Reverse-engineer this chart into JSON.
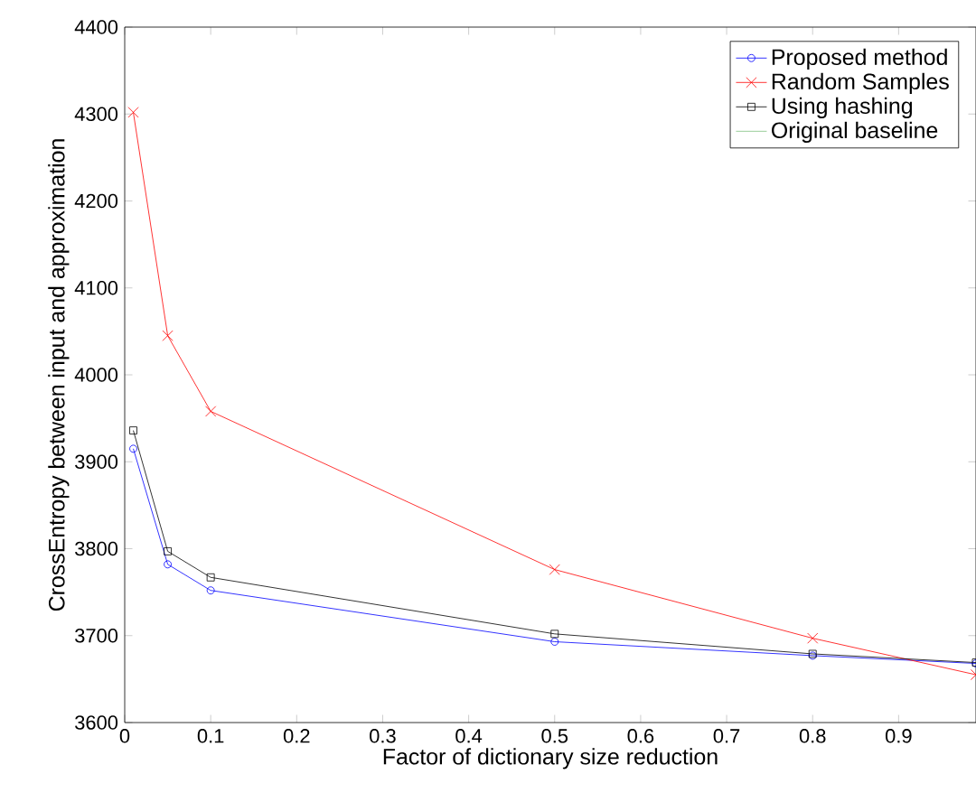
{
  "chart_data": {
    "type": "line",
    "xlabel": "Factor of dictionary size reduction",
    "ylabel": "CrossEntropy between input and approximation",
    "x": [
      0.01,
      0.05,
      0.1,
      0.5,
      0.8,
      0.99
    ],
    "xlim": [
      0,
      0.99
    ],
    "xticks": [
      0,
      0.1,
      0.2,
      0.3,
      0.4,
      0.5,
      0.6,
      0.7,
      0.8,
      0.9
    ],
    "ylim": [
      3600,
      4400
    ],
    "yticks": [
      3600,
      3700,
      3800,
      3900,
      4000,
      4100,
      4200,
      4300,
      4400
    ],
    "legend": "top right",
    "grid": false,
    "series": [
      {
        "name": "Proposed method",
        "color": "#0000ff",
        "marker": "circle",
        "values": [
          3915,
          3782,
          3752,
          3693,
          3677,
          3668
        ]
      },
      {
        "name": "Random Samples",
        "color": "#ff0000",
        "marker": "cross",
        "values": [
          4302,
          4045,
          3958,
          3776,
          3697,
          3655
        ]
      },
      {
        "name": "Using hashing",
        "color": "#000000",
        "marker": "square",
        "values": [
          3936,
          3797,
          3767,
          3702,
          3679,
          3669
        ]
      },
      {
        "name": "Original baseline",
        "color": "#7fbf7f",
        "marker": "none",
        "values": [
          null,
          null,
          null,
          null,
          null,
          null
        ]
      }
    ]
  }
}
